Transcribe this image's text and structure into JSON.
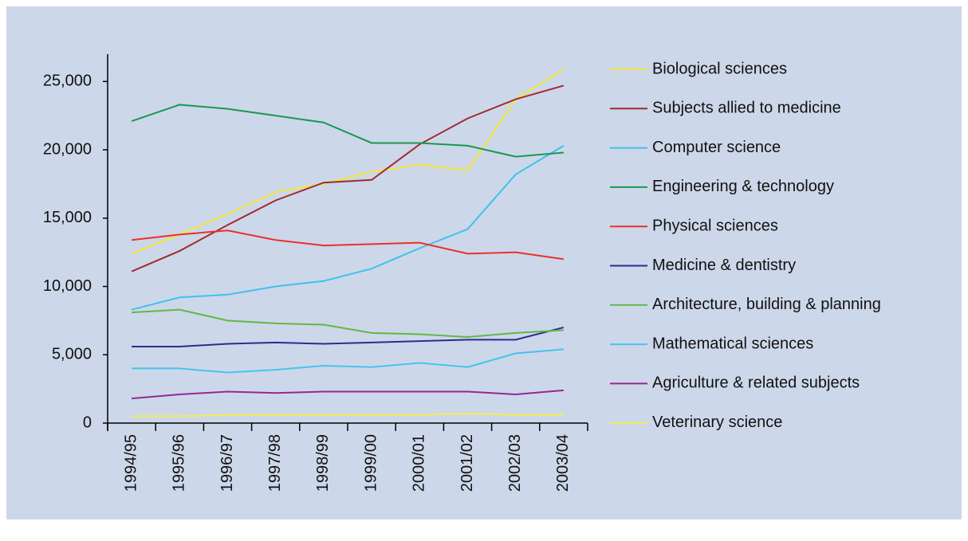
{
  "chart_data": {
    "type": "line",
    "categories": [
      "1994/95",
      "1995/96",
      "1996/97",
      "1997/98",
      "1998/99",
      "1999/00",
      "2000/01",
      "2001/02",
      "2002/03",
      "2003/04"
    ],
    "ylim": [
      0,
      27000
    ],
    "yticks": [
      0,
      {
        "value": 5000,
        "label": "5,000"
      },
      {
        "value": 10000,
        "label": "10,000"
      },
      {
        "value": 15000,
        "label": "15,000"
      },
      {
        "value": 20000,
        "label": "20,000"
      },
      {
        "value": 25000,
        "label": "25,000"
      }
    ],
    "grid": false,
    "legend": "right",
    "series": [
      {
        "name": "Biological sciences",
        "color": "#f2e838",
        "values": [
          12400,
          13800,
          15300,
          16900,
          17500,
          18400,
          18900,
          18500,
          23700,
          25900
        ]
      },
      {
        "name": "Subjects allied to medicine",
        "color": "#a02c2c",
        "values": [
          11100,
          12600,
          14500,
          16300,
          17600,
          17800,
          20400,
          22300,
          23700,
          24700
        ]
      },
      {
        "name": "Computer science",
        "color": "#3ec2ea",
        "values": [
          8300,
          9200,
          9400,
          10000,
          10400,
          11300,
          12800,
          14200,
          18200,
          20300
        ]
      },
      {
        "name": "Engineering & technology",
        "color": "#1a9850",
        "values": [
          22100,
          23300,
          23000,
          22500,
          22000,
          20500,
          20500,
          20300,
          19500,
          19800
        ]
      },
      {
        "name": "Physical sciences",
        "color": "#e8322a",
        "values": [
          13400,
          13800,
          14100,
          13400,
          13000,
          13100,
          13200,
          12400,
          12500,
          12000
        ]
      },
      {
        "name": "Medicine & dentistry",
        "color": "#2a2e8e",
        "values": [
          5600,
          5600,
          5800,
          5900,
          5800,
          5900,
          6000,
          6100,
          6100,
          7000
        ]
      },
      {
        "name": "Architecture, building & planning",
        "color": "#62b845",
        "values": [
          8100,
          8300,
          7500,
          7300,
          7200,
          6600,
          6500,
          6300,
          6600,
          6800
        ]
      },
      {
        "name": "Mathematical sciences",
        "color": "#44c4ee",
        "values": [
          4000,
          4000,
          3700,
          3900,
          4200,
          4100,
          4400,
          4100,
          5100,
          5400
        ]
      },
      {
        "name": "Agriculture & related subjects",
        "color": "#922a90",
        "values": [
          1800,
          2100,
          2300,
          2200,
          2300,
          2300,
          2300,
          2300,
          2100,
          2400
        ]
      },
      {
        "name": "Veterinary science",
        "color": "#f4ec50",
        "values": [
          500,
          500,
          600,
          600,
          600,
          600,
          600,
          700,
          600,
          600
        ]
      }
    ]
  }
}
